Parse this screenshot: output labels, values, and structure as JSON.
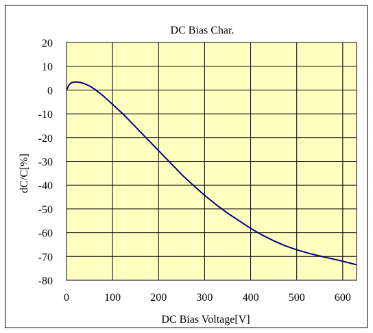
{
  "chart_data": {
    "type": "line",
    "title": "DC Bias Char.",
    "xlabel": "DC Bias Voltage[V]",
    "ylabel": "dC/C[%]",
    "xlim": [
      0,
      630
    ],
    "ylim": [
      -80,
      20
    ],
    "xticks": [
      0,
      100,
      200,
      300,
      400,
      500,
      600
    ],
    "yticks": [
      20,
      10,
      0,
      -10,
      -20,
      -30,
      -40,
      -50,
      -60,
      -70,
      -80
    ],
    "grid": true,
    "legend": "none",
    "colors": {
      "plot_background": "#FFFFC0",
      "line": "#000080",
      "grid": "#000000"
    },
    "series": [
      {
        "x": [
          0,
          5,
          10,
          15,
          20,
          30,
          40,
          50,
          60,
          80,
          100,
          125,
          150,
          175,
          200,
          225,
          250,
          275,
          300,
          325,
          350,
          375,
          400,
          425,
          450,
          475,
          500,
          525,
          550,
          575,
          600,
          630
        ],
        "y": [
          0,
          2.0,
          3.0,
          3.3,
          3.4,
          3.2,
          2.6,
          1.7,
          0.5,
          -2.5,
          -6.0,
          -10.5,
          -15.5,
          -20.5,
          -25.5,
          -30.5,
          -35.5,
          -40.0,
          -44.3,
          -48.2,
          -51.8,
          -55.0,
          -58.2,
          -61.0,
          -63.4,
          -65.5,
          -67.2,
          -68.6,
          -69.8,
          -70.9,
          -72.0,
          -73.5
        ]
      }
    ]
  }
}
